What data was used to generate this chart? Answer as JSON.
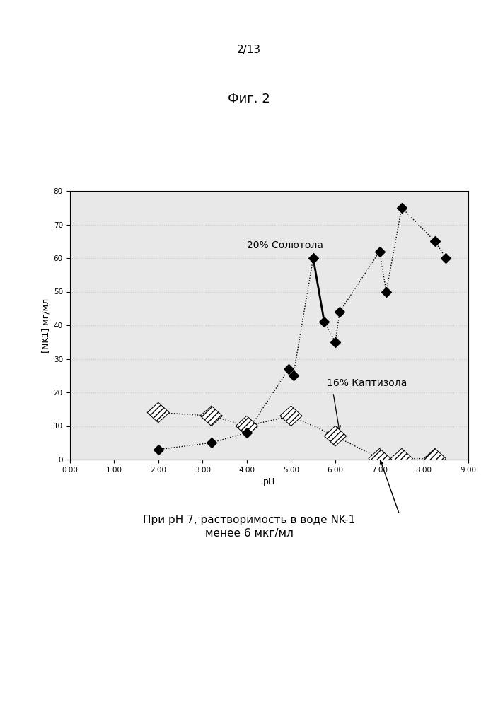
{
  "page_label": "2/13",
  "fig_title": "Фиг. 2",
  "ylabel": "[NK1] мг/мл",
  "xlabel": "pH",
  "xlim": [
    0.0,
    9.0
  ],
  "ylim": [
    0,
    80
  ],
  "yticks": [
    0,
    10,
    20,
    30,
    40,
    50,
    60,
    70,
    80
  ],
  "xtick_vals": [
    0.0,
    1.0,
    2.0,
    3.0,
    4.0,
    5.0,
    6.0,
    7.0,
    8.0,
    9.0
  ],
  "xtick_labels": [
    "0.00",
    "1.00",
    "2.00",
    "3.00",
    "4.00",
    "5.00",
    "6.00",
    "7.00",
    "8.00",
    "9.00"
  ],
  "solutol_x": [
    2.0,
    3.2,
    4.0,
    4.95,
    5.05,
    5.5,
    5.75,
    6.0,
    6.1,
    7.0,
    7.15,
    7.5,
    8.25,
    8.5
  ],
  "solutol_y": [
    3,
    5,
    8,
    27,
    25,
    60,
    41,
    35,
    44,
    62,
    50,
    75,
    65,
    60
  ],
  "captisol_x": [
    2.0,
    3.2,
    4.0,
    5.0,
    6.0,
    7.0,
    7.5,
    8.25
  ],
  "captisol_y": [
    14,
    13,
    10,
    13,
    7,
    0.3,
    0.3,
    0.3
  ],
  "solid_line_x": [
    5.5,
    5.75
  ],
  "solid_line_y": [
    60,
    41
  ],
  "label_solutol": "20% Солютола",
  "label_captisol": "16% Каптизола",
  "annotation_text": "При pH 7, растворимость в воде NK-1\nменее 6 мкг/мл",
  "background_color": "#ffffff",
  "plot_bg": "#e8e8e8",
  "grid_color": "#c8c8c8",
  "dotted_grid_y": [
    10,
    20,
    30,
    40,
    50,
    60,
    70
  ]
}
